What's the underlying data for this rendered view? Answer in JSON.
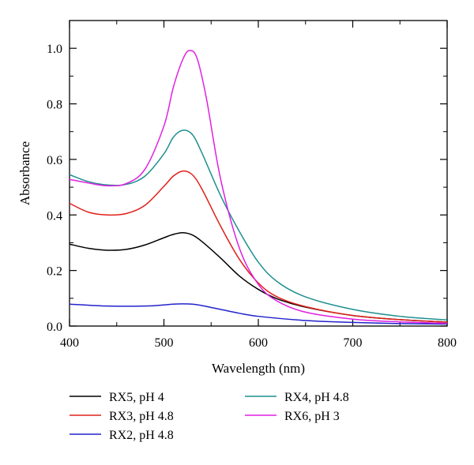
{
  "chart_data": {
    "type": "line",
    "title": "",
    "xlabel": "Wavelength (nm)",
    "ylabel": "Absorbance",
    "xlim": [
      400,
      800
    ],
    "ylim": [
      0,
      1.1
    ],
    "x_ticks": [
      400,
      500,
      600,
      700,
      800
    ],
    "x_tick_labels": [
      "400",
      "500",
      "600",
      "700",
      "800"
    ],
    "y_ticks": [
      0,
      0.2,
      0.4,
      0.6,
      0.8,
      1.0
    ],
    "y_tick_labels": [
      "0.0",
      "0.2",
      "0.4",
      "0.6",
      "0.8",
      "1.0"
    ],
    "grid": false,
    "legend_position": "bottom",
    "series": [
      {
        "name": "RX5, pH 4",
        "color": "#000000",
        "x": [
          400,
          420,
          440,
          460,
          480,
          500,
          510,
          520,
          530,
          540,
          560,
          580,
          600,
          620,
          650,
          700,
          750,
          800
        ],
        "y": [
          0.295,
          0.28,
          0.273,
          0.276,
          0.292,
          0.318,
          0.33,
          0.336,
          0.328,
          0.305,
          0.245,
          0.18,
          0.132,
          0.098,
          0.068,
          0.038,
          0.023,
          0.014
        ]
      },
      {
        "name": "RX3, pH 4.8",
        "color": "#e1201a",
        "x": [
          400,
          420,
          440,
          460,
          480,
          500,
          510,
          520,
          530,
          540,
          560,
          580,
          600,
          620,
          650,
          700,
          750,
          800
        ],
        "y": [
          0.442,
          0.41,
          0.4,
          0.405,
          0.435,
          0.503,
          0.54,
          0.558,
          0.545,
          0.495,
          0.36,
          0.24,
          0.155,
          0.105,
          0.07,
          0.038,
          0.023,
          0.014
        ]
      },
      {
        "name": "RX2, pH 4.8",
        "color": "#2222cc",
        "x": [
          400,
          440,
          480,
          500,
          510,
          520,
          530,
          540,
          560,
          580,
          600,
          650,
          700,
          750,
          800
        ],
        "y": [
          0.079,
          0.072,
          0.072,
          0.076,
          0.079,
          0.08,
          0.079,
          0.074,
          0.06,
          0.046,
          0.035,
          0.02,
          0.013,
          0.009,
          0.007
        ]
      },
      {
        "name": "RX4, pH 4.8",
        "color": "#1f8f8f",
        "x": [
          400,
          420,
          440,
          460,
          480,
          500,
          510,
          520,
          530,
          540,
          560,
          580,
          600,
          620,
          650,
          700,
          750,
          800
        ],
        "y": [
          0.545,
          0.52,
          0.508,
          0.51,
          0.54,
          0.62,
          0.68,
          0.705,
          0.69,
          0.625,
          0.47,
          0.34,
          0.23,
          0.16,
          0.105,
          0.06,
          0.035,
          0.022
        ]
      },
      {
        "name": "RX6, pH 3",
        "color": "#e020e0",
        "x": [
          400,
          420,
          440,
          460,
          480,
          500,
          510,
          520,
          527,
          535,
          545,
          560,
          580,
          600,
          620,
          650,
          700,
          750,
          800
        ],
        "y": [
          0.528,
          0.515,
          0.505,
          0.513,
          0.565,
          0.72,
          0.86,
          0.96,
          0.992,
          0.965,
          0.82,
          0.53,
          0.28,
          0.15,
          0.09,
          0.05,
          0.025,
          0.015,
          0.01
        ]
      }
    ]
  }
}
